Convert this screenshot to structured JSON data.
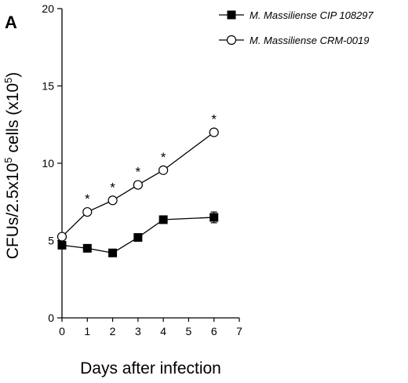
{
  "panel_label": "A",
  "chart_data": {
    "type": "line",
    "xlabel": "Days after infection",
    "ylabel": {
      "base": "CFUs/2.5x10",
      "exp1": "5",
      "mid": " cells (x10",
      "exp2": "5",
      "end": ")"
    },
    "xlim": [
      0,
      7
    ],
    "ylim": [
      0,
      20
    ],
    "xticks": [
      0,
      1,
      2,
      3,
      4,
      5,
      6,
      7
    ],
    "yticks": [
      0,
      5,
      10,
      15,
      20
    ],
    "grid": false,
    "legend_position": "top-right",
    "series": [
      {
        "name": "M. Massiliense CIP 108297",
        "marker": "filled-square",
        "color": "#000000",
        "x": [
          0,
          1,
          2,
          3,
          4,
          6
        ],
        "y": [
          4.7,
          4.5,
          4.2,
          5.2,
          6.35,
          6.5
        ],
        "error": [
          0,
          0,
          0,
          0,
          0,
          0.35
        ]
      },
      {
        "name": "M. Massiliense CRM-0019",
        "marker": "open-circle",
        "color": "#000000",
        "x": [
          0,
          1,
          2,
          3,
          4,
          6
        ],
        "y": [
          5.25,
          6.85,
          7.6,
          8.6,
          9.55,
          12.0
        ],
        "error": [
          0,
          0,
          0,
          0,
          0,
          0
        ]
      }
    ],
    "annotations": [
      {
        "text": "*",
        "x": 1,
        "y": 6.85
      },
      {
        "text": "*",
        "x": 2,
        "y": 7.6
      },
      {
        "text": "*",
        "x": 3,
        "y": 8.6
      },
      {
        "text": "*",
        "x": 4,
        "y": 9.55
      },
      {
        "text": "*",
        "x": 6,
        "y": 12.0
      }
    ]
  }
}
